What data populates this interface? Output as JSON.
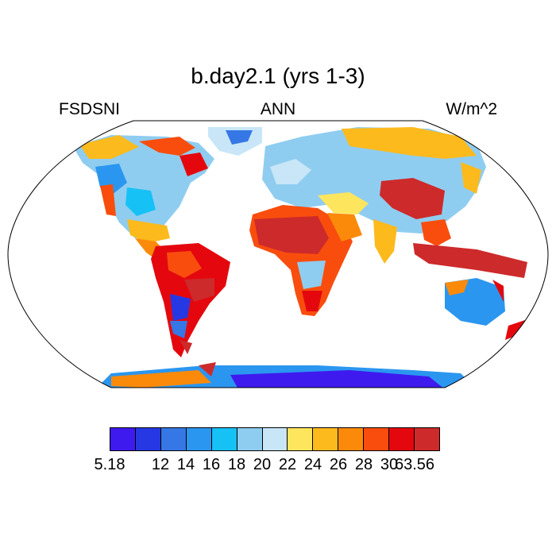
{
  "title": "b.day2.1 (yrs 1-3)",
  "left_label": "FSDSNI",
  "center_label": "ANN",
  "right_label": "W/m^2",
  "colorbar": {
    "colors": [
      "#3f1aef",
      "#2638e3",
      "#3577e5",
      "#2b96f0",
      "#16c1f6",
      "#8fcdf0",
      "#c8e6f7",
      "#fde65e",
      "#fcba1d",
      "#fb8a0a",
      "#f94d0e",
      "#e4080e",
      "#cd2a2b"
    ],
    "labels": [
      "5.18",
      "12",
      "14",
      "16",
      "18",
      "20",
      "22",
      "24",
      "26",
      "28",
      "30",
      "63.56"
    ]
  }
}
